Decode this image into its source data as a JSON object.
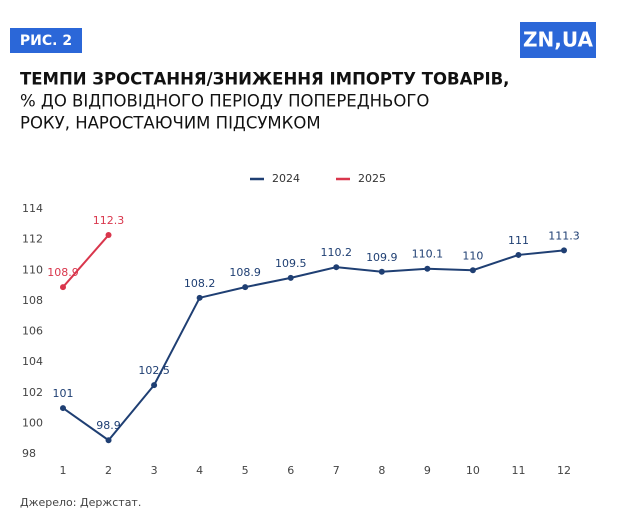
{
  "figure_label": "РИС. 2",
  "logo": "ZN,UA",
  "chart_data": {
    "type": "line",
    "title": "ТЕМПИ ЗРОСТАННЯ/ЗНИЖЕННЯ ІМПОРТУ ТОВАРІВ,",
    "subtitle": [
      "% ДО ВІДПОВІДНОГО ПЕРІОДУ ПОПЕРЕДНЬОГО",
      "РОКУ, НАРОСТАЮЧИМ ПІДСУМКОМ"
    ],
    "x": [
      1,
      2,
      3,
      4,
      5,
      6,
      7,
      8,
      9,
      10,
      11,
      12
    ],
    "xlim": [
      1,
      12
    ],
    "xticks": [
      1,
      2,
      3,
      4,
      5,
      6,
      7,
      8,
      9,
      10,
      11,
      12
    ],
    "ylim": [
      98,
      114
    ],
    "yticks": [
      98,
      100,
      102,
      104,
      106,
      108,
      110,
      112,
      114
    ],
    "series": [
      {
        "name": "2024",
        "color": "#1f3f73",
        "values": [
          101,
          98.9,
          102.5,
          108.2,
          108.9,
          109.5,
          110.2,
          109.9,
          110.1,
          110,
          111,
          111.3
        ]
      },
      {
        "name": "2025",
        "color": "#d9364c",
        "values": [
          108.9,
          112.3,
          null,
          null,
          null,
          null,
          null,
          null,
          null,
          null,
          null,
          null
        ]
      }
    ],
    "legend": "top",
    "source": "Джерело: Держстат."
  }
}
